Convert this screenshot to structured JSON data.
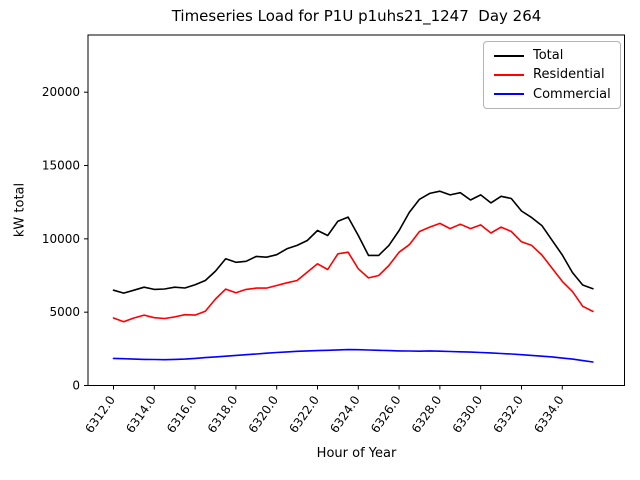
{
  "chart_data": {
    "type": "line",
    "title": "Timeseries Load for P1U p1uhs21_1247  Day 264",
    "xlabel": "Hour of Year",
    "ylabel": "kW total",
    "grid": false,
    "legend_position": "upper right",
    "xlim": [
      6310.75,
      6337.05
    ],
    "ylim": [
      0,
      23900
    ],
    "x_tick_values": [
      6312,
      6314,
      6316,
      6318,
      6320,
      6322,
      6324,
      6326,
      6328,
      6330,
      6332,
      6334
    ],
    "x_tick_labels": [
      "6312.0",
      "6314.0",
      "6316.0",
      "6318.0",
      "6320.0",
      "6322.0",
      "6324.0",
      "6326.0",
      "6328.0",
      "6330.0",
      "6332.0",
      "6334.0"
    ],
    "y_tick_values": [
      0,
      5000,
      10000,
      15000,
      20000
    ],
    "y_tick_labels": [
      "0",
      "5000",
      "10000",
      "15000",
      "20000"
    ],
    "x": [
      6312.0,
      6312.5,
      6313.0,
      6313.5,
      6314.0,
      6314.5,
      6315.0,
      6315.5,
      6316.0,
      6316.5,
      6317.0,
      6317.5,
      6318.0,
      6318.5,
      6319.0,
      6319.5,
      6320.0,
      6320.5,
      6321.0,
      6321.5,
      6322.0,
      6322.5,
      6323.0,
      6323.5,
      6324.0,
      6324.5,
      6325.0,
      6325.5,
      6326.0,
      6326.5,
      6327.0,
      6327.5,
      6328.0,
      6328.5,
      6329.0,
      6329.5,
      6330.0,
      6330.5,
      6331.0,
      6331.5,
      6332.0,
      6332.5,
      6333.0,
      6333.5,
      6334.0,
      6334.5,
      6335.0,
      6335.5
    ],
    "series": [
      {
        "name": "Total",
        "color": "#000000",
        "values": [
          6500,
          6300,
          6500,
          6700,
          6550,
          6580,
          6700,
          6650,
          6870,
          7160,
          7800,
          8640,
          8400,
          8470,
          8800,
          8750,
          8920,
          9320,
          9550,
          9890,
          10570,
          10230,
          11200,
          11480,
          10230,
          8870,
          8870,
          9550,
          10570,
          11800,
          12700,
          13100,
          13250,
          13000,
          13150,
          12650,
          13000,
          12450,
          12900,
          12750,
          11900,
          11450,
          10900,
          9900,
          8900,
          7700,
          6850,
          6600
        ]
      },
      {
        "name": "Residential",
        "color": "#ff0000",
        "values": [
          4600,
          4350,
          4600,
          4800,
          4620,
          4570,
          4680,
          4830,
          4800,
          5060,
          5900,
          6570,
          6320,
          6550,
          6640,
          6640,
          6820,
          7000,
          7160,
          7730,
          8300,
          7910,
          8980,
          9090,
          7960,
          7340,
          7500,
          8180,
          9090,
          9600,
          10500,
          10800,
          11050,
          10700,
          11000,
          10700,
          10950,
          10400,
          10800,
          10500,
          9800,
          9550,
          8900,
          8000,
          7100,
          6400,
          5400,
          5050
        ]
      },
      {
        "name": "Commercial",
        "color": "#0000ff",
        "values": [
          1850,
          1830,
          1800,
          1780,
          1770,
          1760,
          1780,
          1800,
          1850,
          1900,
          1950,
          2000,
          2050,
          2100,
          2150,
          2200,
          2250,
          2290,
          2330,
          2360,
          2380,
          2400,
          2430,
          2450,
          2440,
          2420,
          2400,
          2380,
          2360,
          2350,
          2340,
          2360,
          2340,
          2320,
          2300,
          2280,
          2250,
          2220,
          2180,
          2150,
          2100,
          2050,
          2000,
          1950,
          1870,
          1800,
          1700,
          1600
        ]
      }
    ]
  }
}
